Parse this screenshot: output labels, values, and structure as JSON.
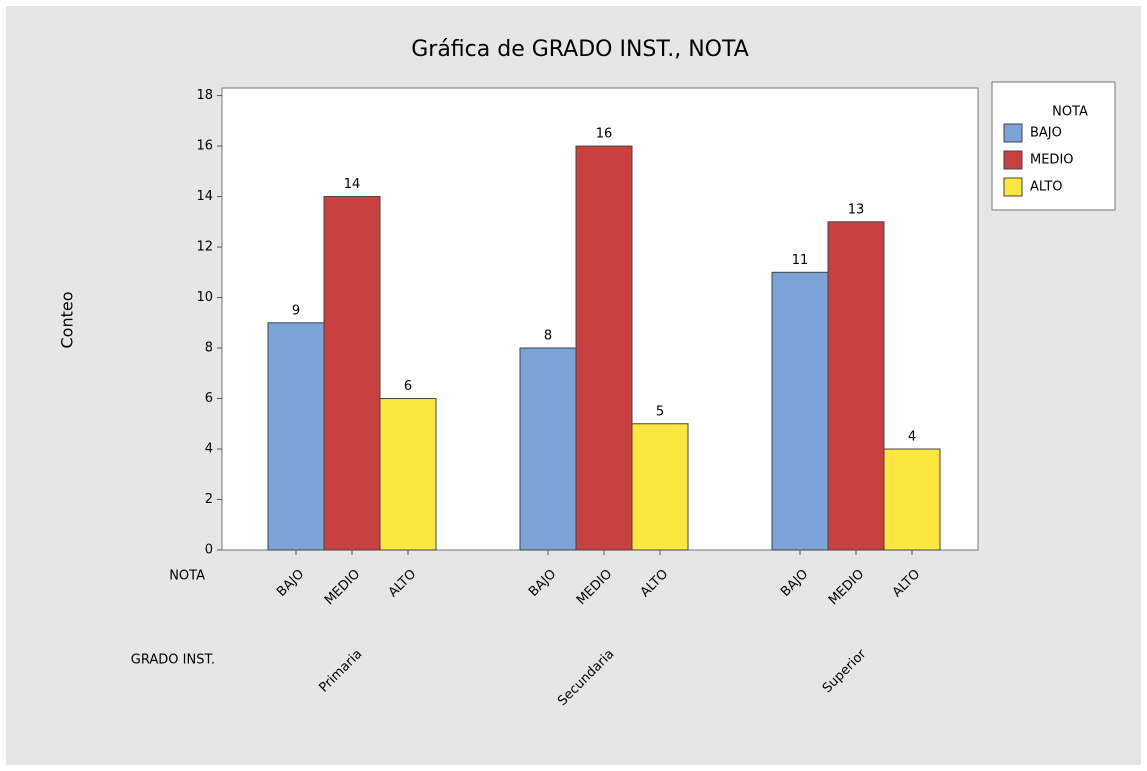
{
  "chart_data": {
    "type": "bar",
    "title": "Gráfica de GRADO INST., NOTA",
    "y_label": "Conteo",
    "x_row_labels": [
      "NOTA",
      "GRADO INST."
    ],
    "categories": [
      "Primaria",
      "Secundaria",
      "Superior"
    ],
    "series": [
      {
        "name": "BAJO",
        "color": "#7ba3d8",
        "values": [
          9,
          8,
          11
        ]
      },
      {
        "name": "MEDIO",
        "color": "#c84040",
        "values": [
          14,
          16,
          13
        ]
      },
      {
        "name": "ALTO",
        "color": "#fde73e",
        "values": [
          6,
          5,
          4
        ]
      }
    ],
    "legend_title": "NOTA",
    "legend": "right",
    "ylim": [
      0,
      18.3
    ],
    "yticks": [
      0,
      2,
      4,
      6,
      8,
      10,
      12,
      14,
      16,
      18
    ]
  }
}
